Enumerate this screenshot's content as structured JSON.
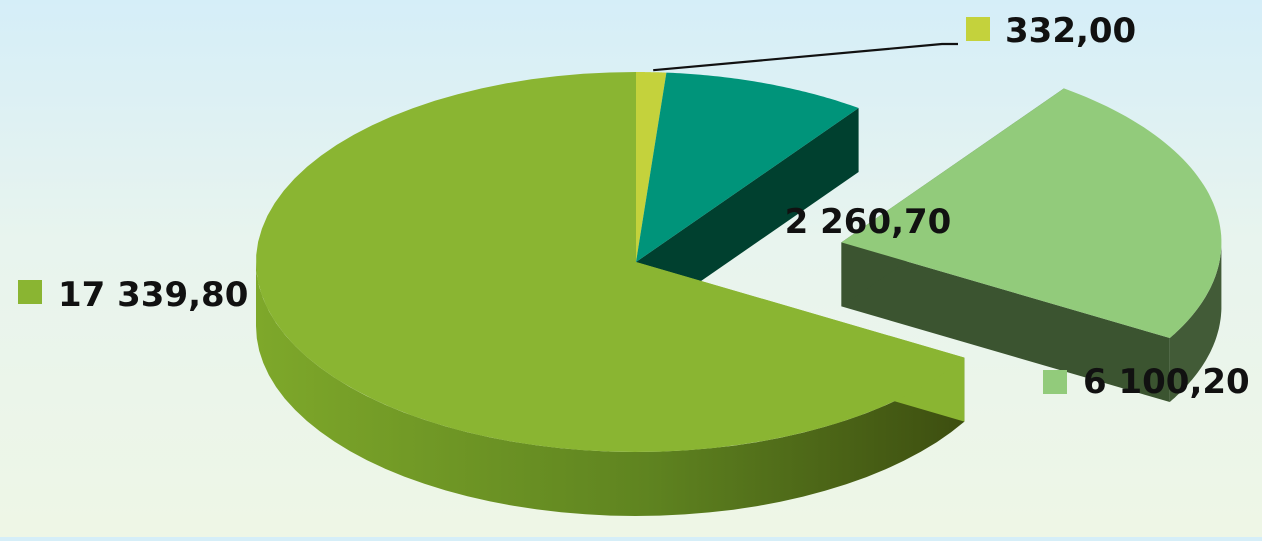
{
  "chart_data": {
    "type": "pie",
    "style": "3d-exploded",
    "slices": [
      {
        "value": 17339.8,
        "label": "17 339,80",
        "color": "#8ab532"
      },
      {
        "value": 332.0,
        "label": "332,00",
        "color": "#c4d23c"
      },
      {
        "value": 2260.7,
        "label": "2 260,70",
        "color": "#00947a"
      },
      {
        "value": 6100.2,
        "label": "6 100,20",
        "color": "#92cb7b",
        "exploded": true
      }
    ]
  }
}
